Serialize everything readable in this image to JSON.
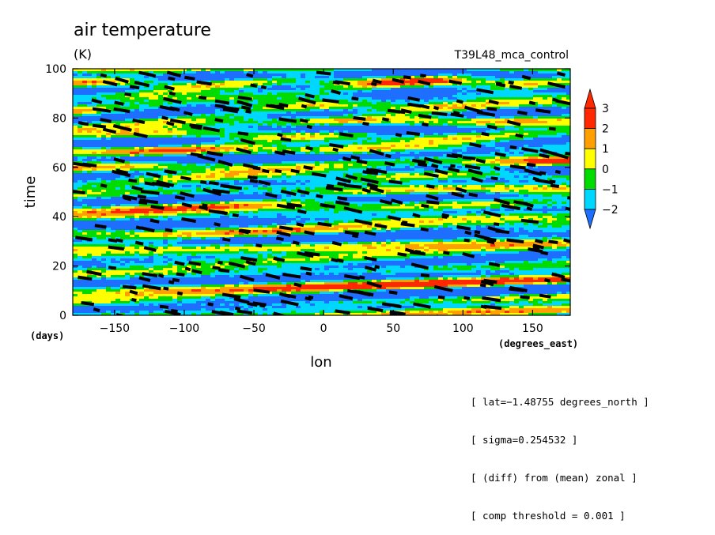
{
  "chart_data": {
    "type": "heatmap",
    "title": "air temperature",
    "units": "(K)",
    "experiment": "T39L48_mca_control",
    "xlabel": "lon",
    "ylabel": "time",
    "x_unit_label": "(degrees_east)",
    "y_unit_label": "(days)",
    "xlim": [
      -180,
      177
    ],
    "ylim": [
      0,
      100
    ],
    "x_ticks": [
      -150,
      -100,
      -50,
      0,
      50,
      100,
      150
    ],
    "x_tick_labels": [
      "−150",
      "−100",
      "−50",
      "0",
      "50",
      "100",
      "150"
    ],
    "y_ticks": [
      0,
      20,
      40,
      60,
      80,
      100
    ],
    "y_tick_labels": [
      "0",
      "20",
      "40",
      "60",
      "80",
      "100"
    ],
    "colorbar": {
      "levels": [
        -2,
        -1,
        0,
        1,
        2,
        3
      ],
      "labels": [
        "−2",
        "−1",
        "0",
        "1",
        "2",
        "3"
      ],
      "colors": [
        "#1e6eff",
        "#00d7ff",
        "#00dc00",
        "#ffff00",
        "#ffa000",
        "#ff2800"
      ],
      "extend": "both"
    },
    "palette": {
      "below_min": "#1e6eff",
      "band_-2_-1": "#1e6eff",
      "band_-1_0": "#00d7ff",
      "band_0_1": "#00dc00",
      "band_1_2": "#ffff00",
      "band_2_3": "#ffa000",
      "above_max": "#ff2800",
      "significance_mark": "#000000"
    },
    "field_description": "Hovmoller diagram of zonal-mean-removed air temperature anomaly; bands tilt eastward with time; black marks indicate composite significance points."
  },
  "annotations": [
    "[ lat=−1.48755 degrees_north ]",
    "[ sigma=0.254532 ]",
    "[ (diff) from (mean) zonal ]",
    "[ comp threshold = 0.001 ]"
  ]
}
